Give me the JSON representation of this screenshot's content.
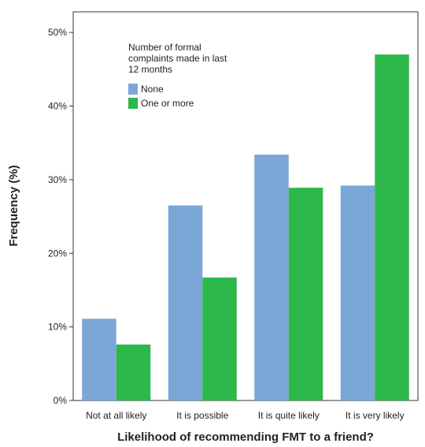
{
  "chart_data": {
    "type": "bar",
    "x_label": "Likelihood of recommending FMT to a friend?",
    "y_label": "Frequency (%)",
    "legend_title": "Number of formal complaints made in last 12 months",
    "legend_position": "upper left",
    "categories": [
      "Not at all likely",
      "It is possible",
      "It is quite likely",
      "It is very likely"
    ],
    "series": [
      {
        "name": "None",
        "color": "#7ba7d6",
        "values": [
          11.1,
          26.5,
          33.4,
          29.2
        ]
      },
      {
        "name": "One or more",
        "color": "#2db84b",
        "values": [
          7.6,
          16.7,
          28.9,
          47.0
        ]
      }
    ],
    "ylim": [
      0,
      52.8
    ],
    "yticks": [
      {
        "value": 0,
        "label": "0%"
      },
      {
        "value": 10,
        "label": "10%"
      },
      {
        "value": 20,
        "label": "20%"
      },
      {
        "value": 30,
        "label": "30%"
      },
      {
        "value": 40,
        "label": "40%"
      },
      {
        "value": 50,
        "label": "50%"
      }
    ],
    "grid": false
  }
}
